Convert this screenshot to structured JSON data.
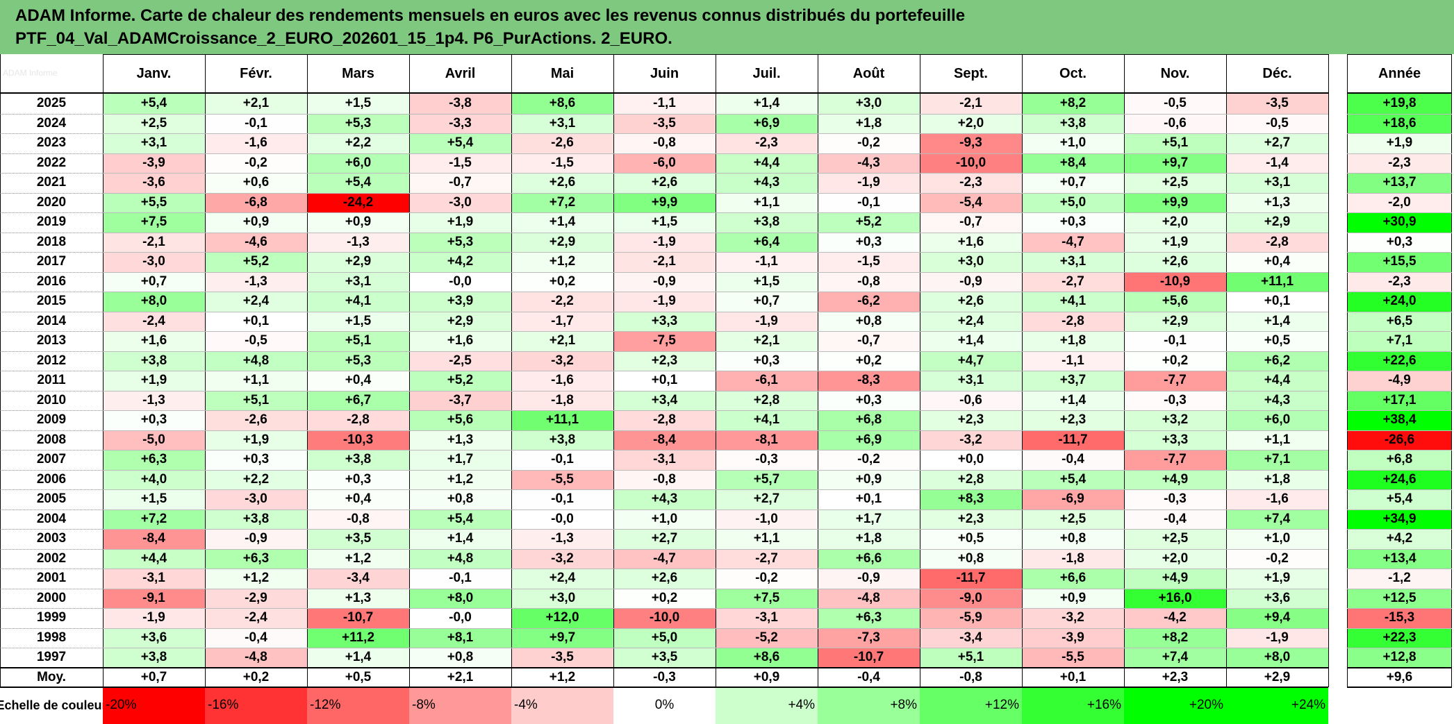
{
  "header": {
    "title_line1": "ADAM Informe. Carte de chaleur des rendements mensuels en euros avec les revenus connus distribués du portefeuille",
    "title_line2": "PTF_04_Val_ADAMCroissance_2_EURO_202601_15_1p4. P6_PurActions. 2_EURO."
  },
  "chart_data": {
    "type": "heatmap",
    "title": "ADAM Informe. Carte de chaleur des rendements mensuels en euros avec les revenus connus distribués du portefeuille PTF_04_Val_ADAMCroissance_2_EURO_202601_15_1p4. P6_PurActions. 2_EURO.",
    "columns": [
      "Janv.",
      "Févr.",
      "Mars",
      "Avril",
      "Mai",
      "Juin",
      "Juil.",
      "Août",
      "Sept.",
      "Oct.",
      "Nov.",
      "Déc."
    ],
    "year_column": "Année",
    "rows": [
      {
        "year": "2025",
        "values": [
          "+5,4",
          "+2,1",
          "+1,5",
          "-3,8",
          "+8,6",
          "-1,1",
          "+1,4",
          "+3,0",
          "-2,1",
          "+8,2",
          "-0,5",
          "-3,5"
        ],
        "annual": "+19,8"
      },
      {
        "year": "2024",
        "values": [
          "+2,5",
          "-0,1",
          "+5,3",
          "-3,3",
          "+3,1",
          "-3,5",
          "+6,9",
          "+1,8",
          "+2,0",
          "+3,8",
          "-0,6",
          "-0,5"
        ],
        "annual": "+18,6"
      },
      {
        "year": "2023",
        "values": [
          "+3,1",
          "-1,6",
          "+2,2",
          "+5,4",
          "-2,6",
          "-0,8",
          "-2,3",
          "-0,2",
          "-9,3",
          "+1,0",
          "+5,1",
          "+2,7"
        ],
        "annual": "+1,9"
      },
      {
        "year": "2022",
        "values": [
          "-3,9",
          "-0,2",
          "+6,0",
          "-1,5",
          "-1,5",
          "-6,0",
          "+4,4",
          "-4,3",
          "-10,0",
          "+8,4",
          "+9,7",
          "-1,4"
        ],
        "annual": "-2,3"
      },
      {
        "year": "2021",
        "values": [
          "-3,6",
          "+0,6",
          "+5,4",
          "-0,7",
          "+2,6",
          "+2,6",
          "+4,3",
          "-1,9",
          "-2,3",
          "+0,7",
          "+2,5",
          "+3,1"
        ],
        "annual": "+13,7"
      },
      {
        "year": "2020",
        "values": [
          "+5,5",
          "-6,8",
          "-24,2",
          "-3,0",
          "+7,2",
          "+9,9",
          "+1,1",
          "-0,1",
          "-5,4",
          "+5,0",
          "+9,9",
          "+1,3"
        ],
        "annual": "-2,0"
      },
      {
        "year": "2019",
        "values": [
          "+7,5",
          "+0,9",
          "+0,9",
          "+1,9",
          "+1,4",
          "+1,5",
          "+3,8",
          "+5,2",
          "-0,7",
          "+0,3",
          "+2,0",
          "+2,9"
        ],
        "annual": "+30,9"
      },
      {
        "year": "2018",
        "values": [
          "-2,1",
          "-4,6",
          "-1,3",
          "+5,3",
          "+2,9",
          "-1,9",
          "+6,4",
          "+0,3",
          "+1,6",
          "-4,7",
          "+1,9",
          "-2,8"
        ],
        "annual": "+0,3"
      },
      {
        "year": "2017",
        "values": [
          "-3,0",
          "+5,2",
          "+2,9",
          "+4,2",
          "+1,2",
          "-2,1",
          "-1,1",
          "-1,5",
          "+3,0",
          "+3,1",
          "+2,6",
          "+0,4"
        ],
        "annual": "+15,5"
      },
      {
        "year": "2016",
        "values": [
          "+0,7",
          "-1,3",
          "+3,1",
          "-0,0",
          "+0,2",
          "-0,9",
          "+1,5",
          "-0,8",
          "-0,9",
          "-2,7",
          "-10,9",
          "+11,1"
        ],
        "annual": "-2,3"
      },
      {
        "year": "2015",
        "values": [
          "+8,0",
          "+2,4",
          "+4,1",
          "+3,9",
          "-2,2",
          "-1,9",
          "+0,7",
          "-6,2",
          "+2,6",
          "+4,1",
          "+5,6",
          "+0,1"
        ],
        "annual": "+24,0"
      },
      {
        "year": "2014",
        "values": [
          "-2,4",
          "+0,1",
          "+1,5",
          "+2,9",
          "-1,7",
          "+3,3",
          "-1,9",
          "+0,8",
          "+2,4",
          "-2,8",
          "+2,9",
          "+1,4"
        ],
        "annual": "+6,5"
      },
      {
        "year": "2013",
        "values": [
          "+1,6",
          "-0,5",
          "+5,1",
          "+1,6",
          "+2,1",
          "-7,5",
          "+2,1",
          "-0,7",
          "+1,4",
          "+1,8",
          "-0,1",
          "+0,5"
        ],
        "annual": "+7,1"
      },
      {
        "year": "2012",
        "values": [
          "+3,8",
          "+4,8",
          "+5,3",
          "-2,5",
          "-3,2",
          "+2,3",
          "+0,3",
          "+0,2",
          "+4,7",
          "-1,1",
          "+0,2",
          "+6,2"
        ],
        "annual": "+22,6"
      },
      {
        "year": "2011",
        "values": [
          "+1,9",
          "+1,1",
          "+0,4",
          "+5,2",
          "-1,6",
          "+0,1",
          "-6,1",
          "-8,3",
          "+3,1",
          "+3,7",
          "-7,7",
          "+4,4"
        ],
        "annual": "-4,9"
      },
      {
        "year": "2010",
        "values": [
          "-1,3",
          "+5,1",
          "+6,7",
          "-3,7",
          "-1,8",
          "+3,4",
          "+2,8",
          "+0,3",
          "-0,6",
          "+1,4",
          "-0,3",
          "+4,3"
        ],
        "annual": "+17,1"
      },
      {
        "year": "2009",
        "values": [
          "+0,3",
          "-2,6",
          "-2,8",
          "+5,6",
          "+11,1",
          "-2,8",
          "+4,1",
          "+6,8",
          "+2,3",
          "+2,3",
          "+3,2",
          "+6,0"
        ],
        "annual": "+38,4"
      },
      {
        "year": "2008",
        "values": [
          "-5,0",
          "+1,9",
          "-10,3",
          "+1,3",
          "+3,8",
          "-8,4",
          "-8,1",
          "+6,9",
          "-3,2",
          "-11,7",
          "+3,3",
          "+1,1"
        ],
        "annual": "-26,6"
      },
      {
        "year": "2007",
        "values": [
          "+6,3",
          "+0,3",
          "+3,8",
          "+1,7",
          "-0,1",
          "-3,1",
          "-0,3",
          "-0,2",
          "+0,0",
          "-0,4",
          "-7,7",
          "+7,1"
        ],
        "annual": "+6,8"
      },
      {
        "year": "2006",
        "values": [
          "+4,0",
          "+2,2",
          "+0,3",
          "+1,2",
          "-5,5",
          "-0,8",
          "+5,7",
          "+0,9",
          "+2,8",
          "+5,4",
          "+4,9",
          "+1,8"
        ],
        "annual": "+24,6"
      },
      {
        "year": "2005",
        "values": [
          "+1,5",
          "-3,0",
          "+0,4",
          "+0,8",
          "-0,1",
          "+4,3",
          "+2,7",
          "+0,1",
          "+8,3",
          "-6,9",
          "-0,3",
          "-1,6"
        ],
        "annual": "+5,4"
      },
      {
        "year": "2004",
        "values": [
          "+7,2",
          "+3,8",
          "-0,8",
          "+5,4",
          "-0,0",
          "+1,0",
          "-1,0",
          "+1,7",
          "+2,3",
          "+2,5",
          "-0,4",
          "+7,4"
        ],
        "annual": "+34,9"
      },
      {
        "year": "2003",
        "values": [
          "-8,4",
          "-0,9",
          "+3,5",
          "+1,4",
          "-1,3",
          "+2,7",
          "+1,1",
          "+1,8",
          "+0,5",
          "+0,8",
          "+2,5",
          "+1,0"
        ],
        "annual": "+4,2"
      },
      {
        "year": "2002",
        "values": [
          "+4,4",
          "+6,3",
          "+1,2",
          "+4,8",
          "-3,2",
          "-4,7",
          "-2,7",
          "+6,6",
          "+0,8",
          "-1,8",
          "+2,0",
          "-0,2"
        ],
        "annual": "+13,4"
      },
      {
        "year": "2001",
        "values": [
          "-3,1",
          "+1,2",
          "-3,4",
          "-0,1",
          "+2,4",
          "+2,6",
          "-0,2",
          "-0,9",
          "-11,7",
          "+6,6",
          "+4,9",
          "+1,9"
        ],
        "annual": "-1,2"
      },
      {
        "year": "2000",
        "values": [
          "-9,1",
          "-2,9",
          "+1,3",
          "+8,0",
          "+3,0",
          "+0,2",
          "+7,5",
          "-4,8",
          "-9,0",
          "+0,9",
          "+16,0",
          "+3,6"
        ],
        "annual": "+12,5"
      },
      {
        "year": "1999",
        "values": [
          "-1,9",
          "-2,4",
          "-10,7",
          "-0,0",
          "+12,0",
          "-10,0",
          "-3,1",
          "+6,3",
          "-5,9",
          "-3,2",
          "-4,2",
          "+9,4"
        ],
        "annual": "-15,3"
      },
      {
        "year": "1998",
        "values": [
          "+3,6",
          "-0,4",
          "+11,2",
          "+8,1",
          "+9,7",
          "+5,0",
          "-5,2",
          "-7,3",
          "-3,4",
          "-3,9",
          "+8,2",
          "-1,9"
        ],
        "annual": "+22,3"
      },
      {
        "year": "1997",
        "values": [
          "+3,8",
          "-4,8",
          "+1,4",
          "+0,8",
          "-3,5",
          "+3,5",
          "+8,6",
          "-10,7",
          "+5,1",
          "-5,5",
          "+7,4",
          "+8,0"
        ],
        "annual": "+12,8"
      }
    ],
    "average": {
      "label": "Moy.",
      "values": [
        "+0,7",
        "+0,2",
        "+0,5",
        "+2,1",
        "+1,2",
        "-0,3",
        "+0,9",
        "-0,4",
        "-0,8",
        "+0,1",
        "+2,3",
        "+2,9"
      ],
      "annual": "+9,6"
    },
    "color_scale": {
      "label": "Echelle de couleur",
      "stops": [
        "-20%",
        "-16%",
        "-12%",
        "-8%",
        "-4%",
        "0%",
        "+4%",
        "+8%",
        "+12%",
        "+16%",
        "+20%",
        "+24%"
      ]
    }
  }
}
